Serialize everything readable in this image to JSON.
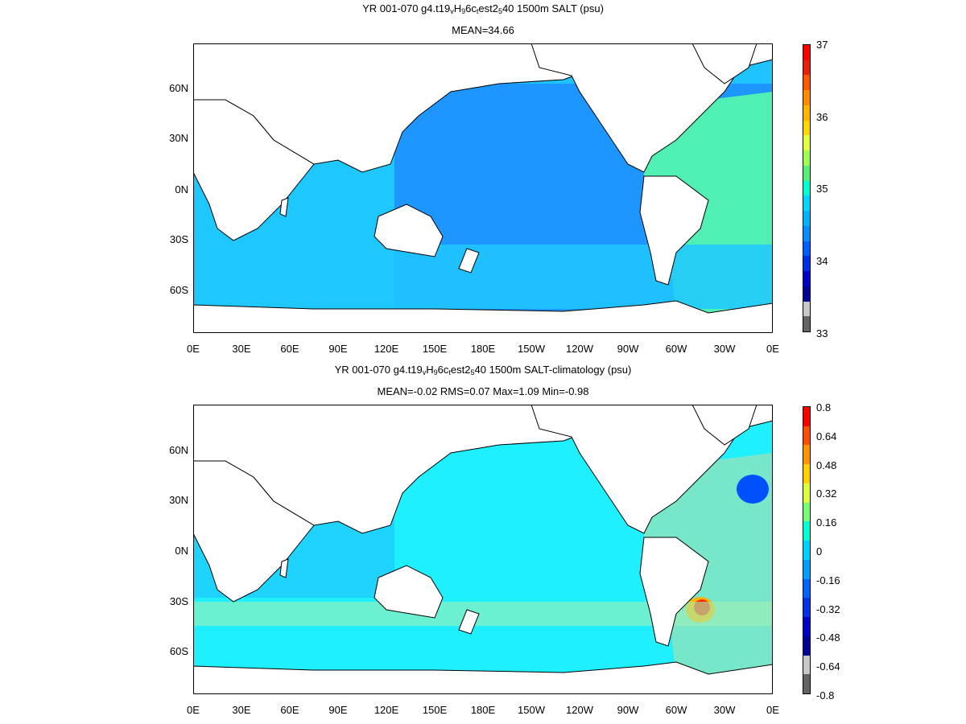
{
  "panels": [
    {
      "title_parts": [
        "YR 001-070 g4.t19",
        "v",
        "H",
        "9",
        "6c",
        "t",
        "est2",
        "5",
        "40 1500m SALT (psu)"
      ],
      "subtitle": "MEAN=34.66",
      "colorbar": {
        "labels": [
          "37",
          "36",
          "35",
          "34",
          "33"
        ],
        "colors": [
          "#ff0000",
          "#e8200a",
          "#ff5a00",
          "#ff8c00",
          "#ffb400",
          "#ffd700",
          "#e6ff3c",
          "#a0ff50",
          "#50f07a",
          "#00ffd2",
          "#00d8ff",
          "#00b4ff",
          "#0090ff",
          "#0060ff",
          "#0030e6",
          "#0000c8",
          "#000096",
          "#c8c8c8",
          "#646464"
        ]
      },
      "field_colors": {
        "ocean": "#1e96ff",
        "indian": "#1ec8ff",
        "atlantic": "#50f0b4",
        "southern": "#1ec8ff"
      }
    },
    {
      "title_parts": [
        "YR 001-070 g4.t19",
        "v",
        "H",
        "9",
        "6c",
        "t",
        "est2",
        "5",
        "40 1500m SALT-climatology (psu)"
      ],
      "subtitle": "MEAN=-0.02   RMS=0.07   Max=1.09   Min=-0.98",
      "colorbar": {
        "labels": [
          "0.8",
          "0.64",
          "0.48",
          "0.32",
          "0.16",
          "0",
          "-0.16",
          "-0.32",
          "-0.48",
          "-0.64",
          "-0.8"
        ],
        "colors": [
          "#ff0000",
          "#ff5000",
          "#ff9600",
          "#ffd200",
          "#dcff3c",
          "#78ff78",
          "#00ffd2",
          "#00d2ff",
          "#00a0ff",
          "#0064ff",
          "#0032e6",
          "#0000c8",
          "#000096",
          "#c8c8c8",
          "#646464"
        ]
      },
      "field_colors": {
        "ocean": "#1ef0ff",
        "indian": "#1ec8ff",
        "atlantic": "#78e6c8",
        "southern": "#00ffe6"
      }
    }
  ],
  "map": {
    "y_labels": [
      "60N",
      "30N",
      "0N",
      "30S",
      "60S"
    ],
    "x_labels": [
      "0E",
      "30E",
      "60E",
      "90E",
      "120E",
      "150E",
      "180E",
      "150W",
      "120W",
      "90W",
      "60W",
      "30W",
      "0E"
    ],
    "land_color": "#ffffff"
  }
}
